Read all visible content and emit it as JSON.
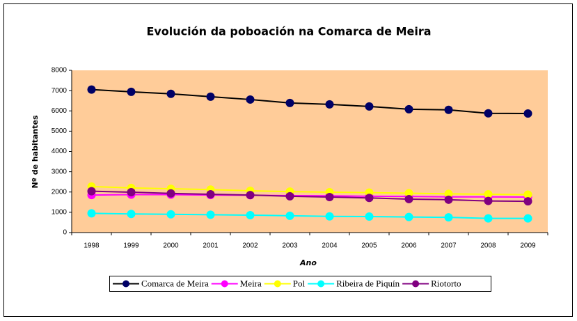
{
  "chart_data": {
    "type": "line",
    "title": "Evolución da poboación na Comarca de Meira",
    "x_label": "Ano",
    "y_label": "Nº de habitantes",
    "categories": [
      "1998",
      "1999",
      "2000",
      "2001",
      "2002",
      "2003",
      "2004",
      "2005",
      "2006",
      "2007",
      "2008",
      "2009"
    ],
    "ylim": [
      0,
      8000
    ],
    "yticks": [
      0,
      1000,
      2000,
      3000,
      4000,
      5000,
      6000,
      7000,
      8000
    ],
    "series": [
      {
        "name": "Comarca de Meira",
        "color": "#000066",
        "values": [
          7050,
          6940,
          6840,
          6700,
          6560,
          6390,
          6320,
          6220,
          6080,
          6050,
          5880,
          5870
        ]
      },
      {
        "name": "Meira",
        "color": "#ff00ff",
        "values": [
          1850,
          1870,
          1870,
          1850,
          1840,
          1820,
          1810,
          1790,
          1780,
          1760,
          1760,
          1750
        ]
      },
      {
        "name": "Pol",
        "color": "#ffff00",
        "values": [
          2270,
          2200,
          2160,
          2120,
          2060,
          2020,
          1990,
          1970,
          1940,
          1910,
          1890,
          1870
        ]
      },
      {
        "name": "Ribeira de Piquín",
        "color": "#00ffff",
        "values": [
          950,
          920,
          900,
          880,
          860,
          830,
          800,
          790,
          770,
          750,
          700,
          700
        ]
      },
      {
        "name": "Riotorto",
        "color": "#800080",
        "values": [
          2040,
          1990,
          1930,
          1890,
          1850,
          1790,
          1750,
          1710,
          1650,
          1620,
          1560,
          1540
        ]
      }
    ]
  }
}
